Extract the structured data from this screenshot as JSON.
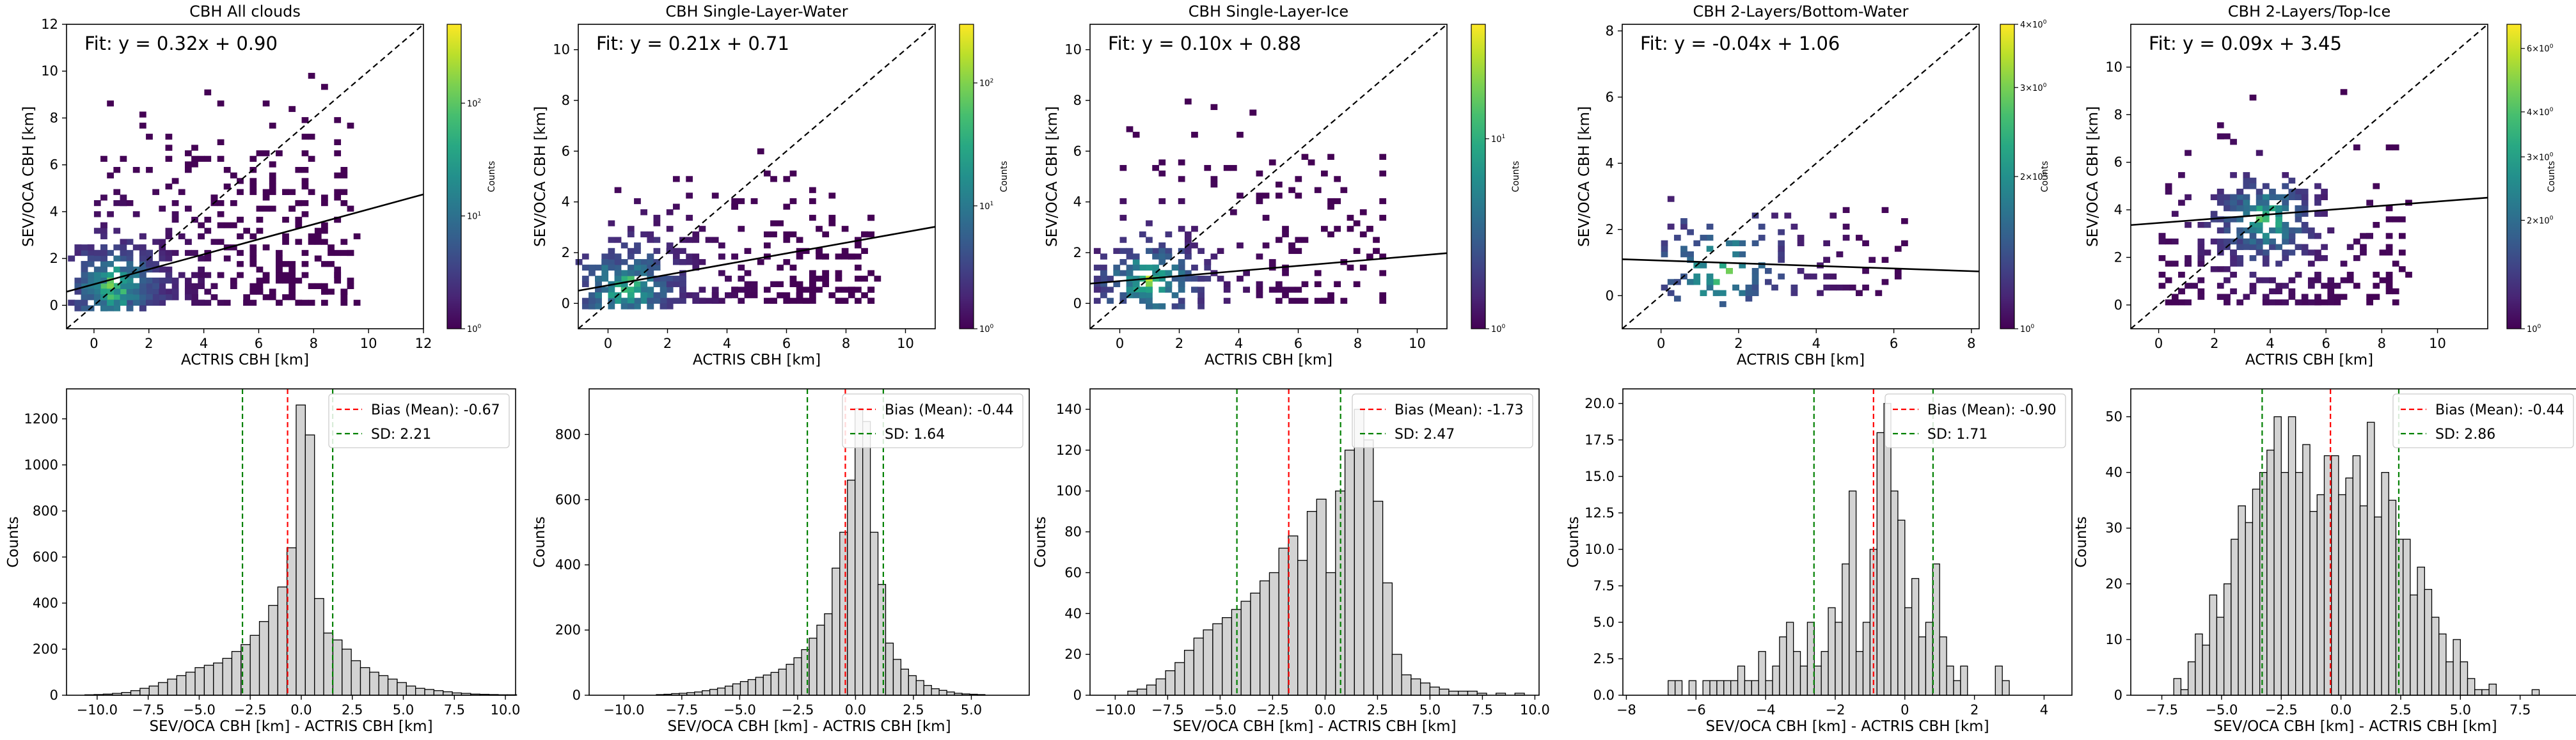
{
  "figure": {
    "colorbar_label": "Counts",
    "hist_ylabel": "Counts",
    "hist_xlabel": "SEV/OCA CBH [km] - ACTRIS CBH [km]",
    "scatter_xlabel": "ACTRIS CBH [km]",
    "scatter_ylabel": "SEV/OCA CBH [km]"
  },
  "chart_data": [
    {
      "type": "heatmap",
      "title": "CBH All clouds",
      "fit_text": "Fit: y = 0.32x + 0.90",
      "fit": {
        "slope": 0.32,
        "intercept": 0.9
      },
      "xlim": [
        -1,
        12
      ],
      "ylim": [
        -1,
        12
      ],
      "xticks": [
        0,
        2,
        4,
        6,
        8,
        10,
        12
      ],
      "yticks": [
        0,
        2,
        4,
        6,
        8,
        10,
        12
      ],
      "xlabel": "ACTRIS CBH [km]",
      "ylabel": "SEV/OCA CBH [km]",
      "colorbar": {
        "label": "Counts",
        "ticks": [
          {
            "value": 1,
            "label": "10^0"
          },
          {
            "value": 10,
            "label": "10^1"
          },
          {
            "value": 100,
            "label": "10^2"
          }
        ],
        "range": [
          1,
          500
        ],
        "scale": "log"
      },
      "density_hint": {
        "xmax": 9.5,
        "ymax": 9,
        "core": [
          0.7,
          0.8
        ],
        "n": 650,
        "seed": 11
      }
    },
    {
      "type": "heatmap",
      "title": "CBH Single-Layer-Water",
      "fit_text": "Fit: y = 0.21x + 0.71",
      "fit": {
        "slope": 0.21,
        "intercept": 0.71
      },
      "xlim": [
        -1,
        11
      ],
      "ylim": [
        -1,
        11
      ],
      "xticks": [
        0,
        2,
        4,
        6,
        8,
        10
      ],
      "yticks": [
        0,
        2,
        4,
        6,
        8,
        10
      ],
      "xlabel": "ACTRIS CBH [km]",
      "ylabel": "SEV/OCA CBH [km]",
      "colorbar": {
        "label": "Counts",
        "ticks": [
          {
            "value": 1,
            "label": "10^0"
          },
          {
            "value": 10,
            "label": "10^1"
          },
          {
            "value": 100,
            "label": "10^2"
          }
        ],
        "range": [
          1,
          300
        ],
        "scale": "log"
      },
      "density_hint": {
        "xmax": 9,
        "ymax": 5.5,
        "core": [
          0.6,
          0.6
        ],
        "n": 450,
        "seed": 23
      }
    },
    {
      "type": "heatmap",
      "title": "CBH Single-Layer-Ice",
      "fit_text": "Fit: y = 0.10x + 0.88",
      "fit": {
        "slope": 0.1,
        "intercept": 0.88
      },
      "xlim": [
        -1,
        11
      ],
      "ylim": [
        -1,
        11
      ],
      "xticks": [
        0,
        2,
        4,
        6,
        8,
        10
      ],
      "yticks": [
        0,
        2,
        4,
        6,
        8,
        10
      ],
      "xlabel": "ACTRIS CBH [km]",
      "ylabel": "SEV/OCA CBH [km]",
      "colorbar": {
        "label": "Counts",
        "ticks": [
          {
            "value": 1,
            "label": "10^0"
          },
          {
            "value": 10,
            "label": "10^1"
          }
        ],
        "range": [
          1,
          40
        ],
        "scale": "log"
      },
      "density_hint": {
        "xmax": 9,
        "ymax": 9,
        "core": [
          1.0,
          0.8
        ],
        "n": 300,
        "seed": 37
      }
    },
    {
      "type": "heatmap",
      "title": "CBH 2-Layers/Bottom-Water",
      "fit_text": "Fit: y = -0.04x + 1.06",
      "fit": {
        "slope": -0.04,
        "intercept": 1.06
      },
      "xlim": [
        -1,
        8.2
      ],
      "ylim": [
        -1,
        8.2
      ],
      "xticks": [
        0,
        2,
        4,
        6,
        8
      ],
      "yticks": [
        0,
        2,
        4,
        6,
        8
      ],
      "xlabel": "ACTRIS CBH [km]",
      "ylabel": "SEV/OCA CBH [km]",
      "colorbar": {
        "label": "Counts",
        "ticks": [
          {
            "value": 1,
            "label": "10^0"
          },
          {
            "value": 2,
            "label": "2×10^0"
          },
          {
            "value": 3,
            "label": "3×10^0"
          },
          {
            "value": 4,
            "label": "4×10^0"
          }
        ],
        "range": [
          1,
          4
        ],
        "scale": "log"
      },
      "density_hint": {
        "xmax": 6.5,
        "ymax": 3,
        "core": [
          1.5,
          0.8
        ],
        "n": 130,
        "seed": 41
      }
    },
    {
      "type": "heatmap",
      "title": "CBH 2-Layers/Top-Ice",
      "fit_text": "Fit: y = 0.09x + 3.45",
      "fit": {
        "slope": 0.09,
        "intercept": 3.45
      },
      "xlim": [
        -1,
        11.8
      ],
      "ylim": [
        -1,
        11.8
      ],
      "xticks": [
        0,
        2,
        4,
        6,
        8,
        10
      ],
      "yticks": [
        0,
        2,
        4,
        6,
        8,
        10
      ],
      "xlabel": "ACTRIS CBH [km]",
      "ylabel": "SEV/OCA CBH [km]",
      "colorbar": {
        "label": "Counts",
        "ticks": [
          {
            "value": 1,
            "label": "10^0"
          },
          {
            "value": 2,
            "label": "2×10^0"
          },
          {
            "value": 3,
            "label": "3×10^0"
          },
          {
            "value": 4,
            "label": "4×10^0"
          },
          {
            "value": 6,
            "label": "6×10^0"
          }
        ],
        "range": [
          1,
          7
        ],
        "scale": "log"
      },
      "density_hint": {
        "xmax": 9,
        "ymax": 7.5,
        "core": [
          3.8,
          3.6
        ],
        "n": 380,
        "seed": 53
      }
    },
    {
      "type": "bar",
      "subtype": "histogram",
      "xlim": [
        -11.5,
        10.5
      ],
      "ylim": [
        0,
        1330
      ],
      "xticks": [
        -10.0,
        -7.5,
        -5.0,
        -2.5,
        0.0,
        2.5,
        5.0,
        7.5,
        10.0
      ],
      "xtick_labels": [
        "−10.0",
        "−7.5",
        "−5.0",
        "−2.5",
        "0.0",
        "2.5",
        "5.0",
        "7.5",
        "10.0"
      ],
      "yticks": [
        0,
        200,
        400,
        600,
        800,
        1000,
        1200
      ],
      "xlabel": "SEV/OCA CBH [km] - ACTRIS CBH [km]",
      "ylabel": "Counts",
      "bias": -0.67,
      "sd": 2.21,
      "legend": [
        "Bias (Mean): -0.67",
        "SD: 2.21"
      ],
      "bins": {
        "start": -10.6,
        "width": 0.45,
        "counts": [
          2,
          3,
          5,
          8,
          12,
          20,
          30,
          40,
          55,
          70,
          85,
          100,
          120,
          130,
          140,
          160,
          190,
          220,
          260,
          320,
          390,
          470,
          640,
          1260,
          1130,
          420,
          270,
          240,
          200,
          150,
          120,
          100,
          85,
          70,
          55,
          40,
          30,
          25,
          20,
          15,
          10,
          8,
          5,
          4,
          3,
          2,
          2
        ]
      }
    },
    {
      "type": "bar",
      "subtype": "histogram",
      "xlim": [
        -11.5,
        7.5
      ],
      "ylim": [
        0,
        940
      ],
      "xticks": [
        -10.0,
        -7.5,
        -5.0,
        -2.5,
        0.0,
        2.5,
        5.0
      ],
      "xtick_labels": [
        "−10.0",
        "−7.5",
        "−5.0",
        "−2.5",
        "0.0",
        "2.5",
        "5.0"
      ],
      "yticks": [
        0,
        200,
        400,
        600,
        800
      ],
      "xlabel": "SEV/OCA CBH [km] - ACTRIS CBH [km]",
      "ylabel": "Counts",
      "bias": -0.44,
      "sd": 1.64,
      "legend": [
        "Bias (Mean): -0.44",
        "SD: 1.64"
      ],
      "bins": {
        "start": -8.6,
        "width": 0.33,
        "counts": [
          2,
          3,
          5,
          6,
          8,
          10,
          14,
          18,
          22,
          28,
          35,
          42,
          48,
          55,
          62,
          70,
          80,
          95,
          115,
          140,
          175,
          215,
          250,
          390,
          500,
          660,
          880,
          840,
          500,
          340,
          160,
          110,
          80,
          60,
          45,
          30,
          20,
          15,
          10,
          6,
          4,
          3,
          2
        ]
      }
    },
    {
      "type": "bar",
      "subtype": "histogram",
      "xlim": [
        -11.2,
        10.2
      ],
      "ylim": [
        0,
        150
      ],
      "xticks": [
        -10.0,
        -7.5,
        -5.0,
        -2.5,
        0.0,
        2.5,
        5.0,
        7.5,
        10.0
      ],
      "xtick_labels": [
        "−10.0",
        "−7.5",
        "−5.0",
        "−2.5",
        "0.0",
        "2.5",
        "5.0",
        "7.5",
        "10.0"
      ],
      "yticks": [
        0,
        20,
        40,
        60,
        80,
        100,
        120,
        140
      ],
      "xlabel": "SEV/OCA CBH [km] - ACTRIS CBH [km]",
      "ylabel": "Counts",
      "bias": -1.73,
      "sd": 2.47,
      "legend": [
        "Bias (Mean): -1.73",
        "SD: 2.47"
      ],
      "bins": {
        "start": -9.4,
        "width": 0.45,
        "counts": [
          2,
          3,
          5,
          8,
          12,
          16,
          22,
          28,
          32,
          35,
          38,
          42,
          46,
          50,
          56,
          60,
          72,
          78,
          66,
          90,
          96,
          60,
          100,
          120,
          140,
          125,
          95,
          55,
          20,
          10,
          8,
          6,
          4,
          3,
          2,
          2,
          2,
          1,
          0,
          1,
          0,
          1
        ]
      }
    },
    {
      "type": "bar",
      "subtype": "histogram",
      "xlim": [
        -8.1,
        4.8
      ],
      "ylim": [
        0,
        21
      ],
      "xticks": [
        -8,
        -6,
        -4,
        -2,
        0,
        2,
        4
      ],
      "xtick_labels": [
        "−8",
        "−6",
        "−4",
        "−2",
        "0",
        "2",
        "4"
      ],
      "yticks": [
        0.0,
        2.5,
        5.0,
        7.5,
        10.0,
        12.5,
        15.0,
        17.5,
        20.0
      ],
      "ytick_labels": [
        "0.0",
        "2.5",
        "5.0",
        "7.5",
        "10.0",
        "12.5",
        "15.0",
        "17.5",
        "20.0"
      ],
      "xlabel": "SEV/OCA CBH [km] - ACTRIS CBH [km]",
      "ylabel": "Counts",
      "bias": -0.9,
      "sd": 1.71,
      "legend": [
        "Bias (Mean): -0.90",
        "SD: 1.71"
      ],
      "bins": {
        "start": -6.8,
        "width": 0.2,
        "counts": [
          1,
          1,
          0,
          1,
          0,
          1,
          1,
          1,
          1,
          1,
          2,
          1,
          1,
          3,
          1,
          2,
          4,
          5,
          3,
          2,
          5,
          2,
          3,
          6,
          5,
          9,
          14,
          3,
          5,
          10,
          18,
          20,
          14,
          12,
          6,
          8,
          4,
          5,
          9,
          4,
          2,
          1,
          2,
          0,
          0,
          0,
          0,
          2,
          1
        ]
      }
    },
    {
      "type": "bar",
      "subtype": "histogram",
      "xlim": [
        -8.8,
        10.0
      ],
      "ylim": [
        0,
        55
      ],
      "xticks": [
        -7.5,
        -5.0,
        -2.5,
        0.0,
        2.5,
        5.0,
        7.5
      ],
      "xtick_labels": [
        "−7.5",
        "−5.0",
        "−2.5",
        "0.0",
        "2.5",
        "5.0",
        "7.5"
      ],
      "yticks": [
        0,
        10,
        20,
        30,
        40,
        50
      ],
      "xlabel": "SEV/OCA CBH [km] - ACTRIS CBH [km]",
      "ylabel": "Counts",
      "bias": -0.44,
      "sd": 2.86,
      "legend": [
        "Bias (Mean): -0.44",
        "SD: 2.86"
      ],
      "bins": {
        "start": -7.0,
        "width": 0.3,
        "counts": [
          3,
          1,
          6,
          11,
          9,
          18,
          14,
          20,
          28,
          34,
          31,
          37,
          40,
          44,
          50,
          40,
          50,
          40,
          45,
          33,
          36,
          43,
          43,
          36,
          39,
          43,
          34,
          49,
          32,
          40,
          35,
          28,
          28,
          18,
          23,
          19,
          14,
          11,
          6,
          10,
          6,
          3,
          1,
          1,
          2,
          0,
          0,
          0,
          0,
          0,
          1
        ]
      }
    }
  ]
}
